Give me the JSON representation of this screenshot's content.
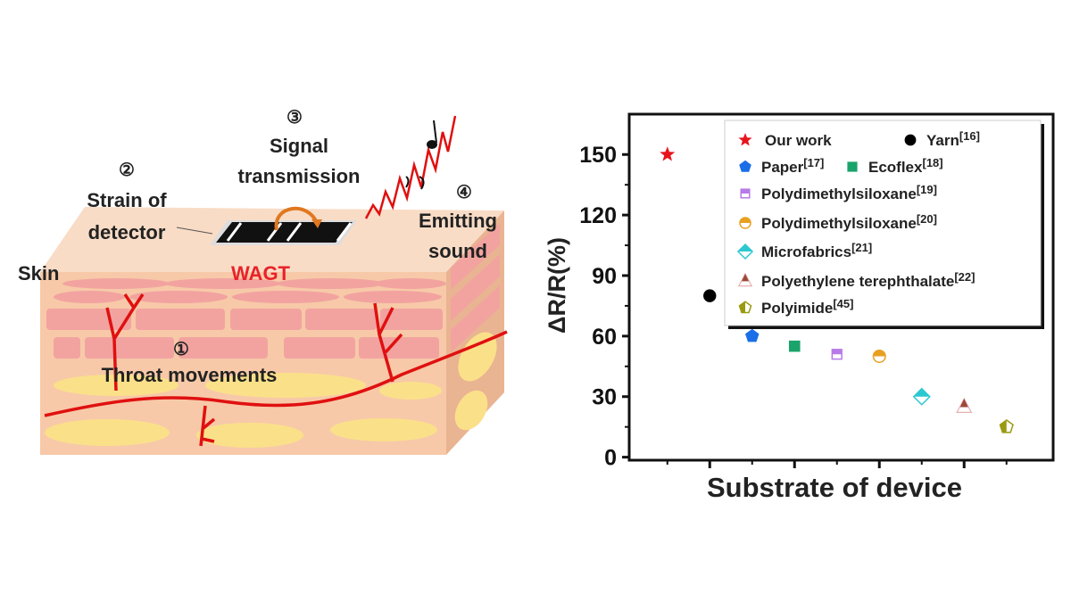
{
  "diagram": {
    "step1": "①",
    "step1_label": "Throat movements",
    "step2": "②",
    "step2_label_line1": "Strain of",
    "step2_label_line2": "detector",
    "step3": "③",
    "step3_label_line1": "Signal",
    "step3_label_line2": "transmission",
    "step4": "④",
    "step4_label_line1": "Emitting",
    "step4_label_line2": "sound",
    "skin_label": "Skin",
    "device_label": "WAGT",
    "colors": {
      "device_label": "#e8222a",
      "vessel": "#e01010",
      "skin_top": "#f8d6c0",
      "cells": "#f3a3a3",
      "fat": "#fbe08a"
    }
  },
  "chart_data": {
    "type": "scatter",
    "title": "",
    "xlabel": "Substrate of device",
    "ylabel": "ΔR/R(%)",
    "ylim": [
      -1.5,
      170
    ],
    "xlim": [
      0.1,
      10.1
    ],
    "yticks": [
      0,
      30,
      60,
      90,
      120,
      150
    ],
    "yticklabels": [
      "0",
      "30",
      "60",
      "90",
      "120",
      "150"
    ],
    "xticks_major": [
      2,
      4,
      6,
      8
    ],
    "xticks_minor": [
      1,
      3,
      5,
      7,
      9
    ],
    "grid": false,
    "legend_position": "top-right",
    "series": [
      {
        "name": "Our work",
        "ref": "",
        "x": 1,
        "y": 150,
        "marker": "star",
        "color": "#e8141c"
      },
      {
        "name": "Yarn",
        "ref": "[16]",
        "x": 2,
        "y": 80,
        "marker": "circle",
        "color": "#000000"
      },
      {
        "name": "Paper",
        "ref": "[17]",
        "x": 3,
        "y": 60,
        "marker": "pentagon",
        "color": "#1a6fe8"
      },
      {
        "name": "Ecoflex",
        "ref": "[18]",
        "x": 4,
        "y": 55,
        "marker": "square",
        "color": "#1aa36a"
      },
      {
        "name": "Polydimethylsiloxane",
        "ref": "[19]",
        "x": 5,
        "y": 51,
        "marker": "half-square",
        "color": "#b77ae8"
      },
      {
        "name": "Polydimethylsiloxane",
        "ref": "[20]",
        "x": 6,
        "y": 50,
        "marker": "half-circle",
        "color": "#e8a020"
      },
      {
        "name": "Microfabrics",
        "ref": "[21]",
        "x": 7,
        "y": 30,
        "marker": "half-diamond",
        "color": "#2cc8d0"
      },
      {
        "name": "Polyethylene terephthalate",
        "ref": "[22]",
        "x": 8,
        "y": 25,
        "marker": "half-triangle",
        "color": "#9a4a3a"
      },
      {
        "name": "Polyimide",
        "ref": "[45]",
        "x": 9,
        "y": 15,
        "marker": "half-pentagon",
        "color": "#9a9a10"
      }
    ]
  }
}
